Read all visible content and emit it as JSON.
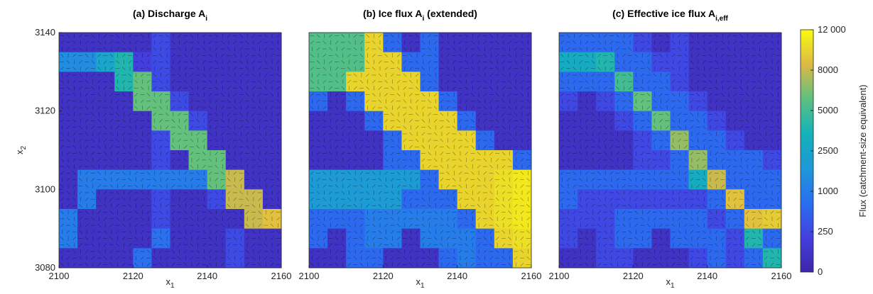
{
  "chart_data": {
    "type": "heatmap",
    "xlim": [
      2100,
      2160
    ],
    "ylim": [
      3080,
      3140
    ],
    "xticks": [
      2100,
      2120,
      2140,
      2160
    ],
    "yticks": [
      3080,
      3100,
      3120,
      3140
    ],
    "xlabel": "x",
    "xlabel_sub": "1",
    "ylabel": "x",
    "ylabel_sub": "2",
    "colorbar": {
      "label": "Flux (catchment-size equivalent)",
      "ticks": [
        0,
        250,
        1000,
        2500,
        5000,
        8000,
        {
          "value": 12000,
          "label": "12 000"
        }
      ],
      "colormap": [
        "#3e26a8",
        "#4340e0",
        "#2a6ff0",
        "#1f97d8",
        "#14b2b9",
        "#5cc080",
        "#ddb945",
        "#f9fb0e"
      ]
    },
    "panels": [
      {
        "title": "(a) Discharge A",
        "title_sub": "i",
        "z": [
          [
            100,
            100,
            100,
            100,
            100,
            300,
            100,
            100,
            100,
            100,
            100,
            100
          ],
          [
            1500,
            1500,
            2500,
            4000,
            200,
            300,
            100,
            100,
            100,
            100,
            100,
            100
          ],
          [
            100,
            100,
            100,
            4000,
            6000,
            300,
            100,
            100,
            100,
            100,
            100,
            100
          ],
          [
            100,
            100,
            100,
            100,
            6000,
            6000,
            300,
            100,
            100,
            100,
            100,
            100
          ],
          [
            100,
            100,
            100,
            100,
            100,
            6000,
            6000,
            300,
            100,
            100,
            100,
            100
          ],
          [
            100,
            100,
            100,
            100,
            100,
            300,
            6000,
            6000,
            100,
            100,
            100,
            100
          ],
          [
            100,
            100,
            100,
            100,
            100,
            300,
            100,
            6000,
            6000,
            100,
            100,
            100
          ],
          [
            100,
            1000,
            1000,
            1000,
            1000,
            1000,
            1000,
            1000,
            6000,
            8000,
            100,
            100
          ],
          [
            100,
            1000,
            100,
            100,
            100,
            300,
            100,
            100,
            300,
            8000,
            8000,
            100
          ],
          [
            1000,
            100,
            100,
            100,
            100,
            300,
            100,
            100,
            100,
            100,
            8000,
            9000
          ],
          [
            1000,
            100,
            100,
            100,
            100,
            800,
            100,
            100,
            100,
            300,
            100,
            100
          ],
          [
            100,
            100,
            100,
            100,
            800,
            100,
            100,
            100,
            100,
            300,
            100,
            100
          ]
        ]
      },
      {
        "title": "(b) Ice flux A",
        "title_sub": "i",
        "title_end": " (extended)",
        "z": [
          [
            5500,
            5500,
            5500,
            10000,
            700,
            100,
            700,
            100,
            100,
            100,
            100,
            100
          ],
          [
            5500,
            5500,
            5500,
            10000,
            10000,
            700,
            700,
            100,
            100,
            100,
            100,
            100
          ],
          [
            5500,
            5500,
            10000,
            10000,
            10000,
            10000,
            700,
            100,
            100,
            100,
            100,
            100
          ],
          [
            700,
            100,
            700,
            10000,
            10000,
            10000,
            10000,
            700,
            100,
            100,
            100,
            100
          ],
          [
            100,
            100,
            100,
            700,
            10000,
            10000,
            10000,
            10000,
            700,
            100,
            100,
            100
          ],
          [
            100,
            100,
            100,
            100,
            700,
            10000,
            10000,
            10000,
            10000,
            700,
            100,
            100
          ],
          [
            100,
            100,
            100,
            100,
            700,
            700,
            10000,
            10000,
            10000,
            10000,
            10000,
            700
          ],
          [
            2000,
            2000,
            2000,
            2000,
            2000,
            2000,
            700,
            10000,
            10000,
            10000,
            10500,
            11000
          ],
          [
            2000,
            2000,
            2000,
            2000,
            2000,
            700,
            700,
            700,
            10000,
            10000,
            10500,
            11000
          ],
          [
            700,
            700,
            700,
            1000,
            1000,
            1000,
            1000,
            1000,
            700,
            10000,
            10500,
            11000
          ],
          [
            700,
            100,
            700,
            1000,
            1000,
            100,
            1000,
            1000,
            1000,
            700,
            10000,
            10500
          ],
          [
            100,
            100,
            700,
            700,
            100,
            100,
            100,
            700,
            1000,
            700,
            700,
            10000
          ]
        ]
      },
      {
        "title": "(c) Effective ice flux A",
        "title_sub": "i,eff",
        "z": [
          [
            700,
            700,
            700,
            700,
            250,
            100,
            250,
            100,
            100,
            100,
            100,
            100
          ],
          [
            3000,
            3000,
            4000,
            700,
            700,
            250,
            250,
            100,
            100,
            100,
            100,
            100
          ],
          [
            700,
            700,
            700,
            5000,
            700,
            700,
            250,
            100,
            100,
            100,
            100,
            100
          ],
          [
            250,
            100,
            250,
            700,
            6000,
            700,
            700,
            250,
            100,
            100,
            100,
            100
          ],
          [
            100,
            100,
            100,
            250,
            700,
            6000,
            700,
            700,
            250,
            100,
            100,
            100
          ],
          [
            100,
            100,
            100,
            100,
            250,
            700,
            7000,
            700,
            700,
            250,
            100,
            100
          ],
          [
            100,
            100,
            100,
            100,
            250,
            250,
            700,
            7000,
            700,
            700,
            700,
            250
          ],
          [
            700,
            700,
            700,
            700,
            700,
            700,
            700,
            3000,
            8000,
            700,
            700,
            700
          ],
          [
            700,
            250,
            250,
            250,
            250,
            250,
            250,
            250,
            700,
            9000,
            700,
            700
          ],
          [
            250,
            250,
            250,
            700,
            700,
            700,
            700,
            700,
            250,
            700,
            9000,
            9500
          ],
          [
            250,
            100,
            250,
            700,
            700,
            100,
            700,
            700,
            700,
            250,
            4000,
            700
          ],
          [
            100,
            100,
            250,
            250,
            100,
            100,
            100,
            250,
            700,
            250,
            700,
            4000
          ]
        ]
      }
    ]
  }
}
